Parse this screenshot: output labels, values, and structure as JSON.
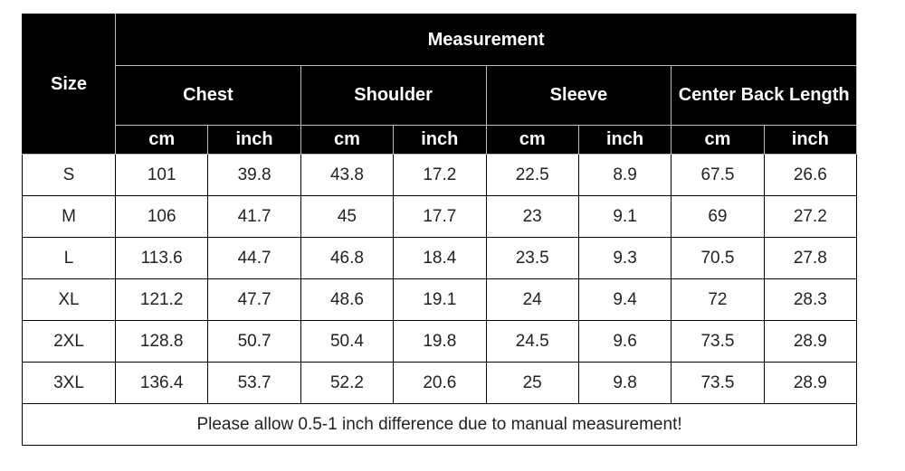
{
  "header": {
    "size": "Size",
    "title": "Measurement",
    "groups": [
      "Chest",
      "Shoulder",
      "Sleeve",
      "Center Back Length"
    ],
    "units": [
      "cm",
      "inch",
      "cm",
      "inch",
      "cm",
      "inch",
      "cm",
      "inch"
    ]
  },
  "table": {
    "rows": [
      [
        "S",
        "101",
        "39.8",
        "43.8",
        "17.2",
        "22.5",
        "8.9",
        "67.5",
        "26.6"
      ],
      [
        "M",
        "106",
        "41.7",
        "45",
        "17.7",
        "23",
        "9.1",
        "69",
        "27.2"
      ],
      [
        "L",
        "113.6",
        "44.7",
        "46.8",
        "18.4",
        "23.5",
        "9.3",
        "70.5",
        "27.8"
      ],
      [
        "XL",
        "121.2",
        "47.7",
        "48.6",
        "19.1",
        "24",
        "9.4",
        "72",
        "28.3"
      ],
      [
        "2XL",
        "128.8",
        "50.7",
        "50.4",
        "19.8",
        "24.5",
        "9.6",
        "73.5",
        "28.9"
      ],
      [
        "3XL",
        "136.4",
        "53.7",
        "52.2",
        "20.6",
        "25",
        "9.8",
        "73.5",
        "28.9"
      ]
    ]
  },
  "footer": "Please allow 0.5-1 inch difference due to manual measurement!"
}
